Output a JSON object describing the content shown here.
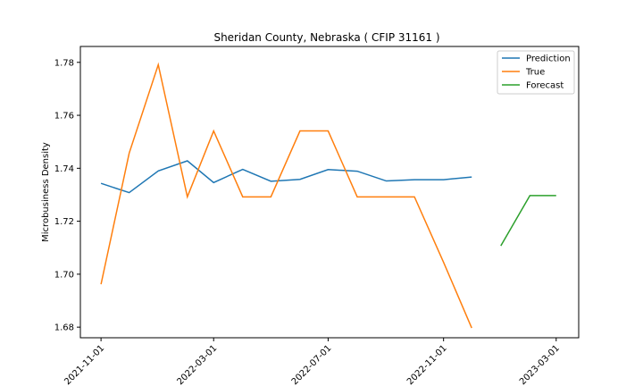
{
  "chart_data": {
    "type": "line",
    "title": "Sheridan County, Nebraska ( CFIP 31161 )",
    "xlabel": "",
    "ylabel": "Microbusiness Density",
    "ylim": [
      1.676,
      1.786
    ],
    "xlim": [
      "2021-10-10",
      "2023-03-25"
    ],
    "x_ticks": [
      "2021-11-01",
      "2022-03-01",
      "2022-07-01",
      "2022-11-01",
      "2023-03-01"
    ],
    "y_ticks": [
      1.68,
      1.7,
      1.72,
      1.74,
      1.76,
      1.78
    ],
    "y_tick_labels": [
      "1.68",
      "1.70",
      "1.72",
      "1.74",
      "1.76",
      "1.78"
    ],
    "grid": false,
    "legend_position": "top-right",
    "series": [
      {
        "name": "Prediction",
        "color": "#1f77b4",
        "x": [
          "2021-11-01",
          "2021-12-01",
          "2022-01-01",
          "2022-02-01",
          "2022-03-01",
          "2022-04-01",
          "2022-05-01",
          "2022-06-01",
          "2022-07-01",
          "2022-08-01",
          "2022-09-01",
          "2022-10-01",
          "2022-11-01",
          "2022-12-01"
        ],
        "y": [
          1.7343,
          1.7308,
          1.739,
          1.7428,
          1.7346,
          1.7396,
          1.7351,
          1.7358,
          1.7395,
          1.7389,
          1.7352,
          1.7357,
          1.7357,
          1.7367
        ]
      },
      {
        "name": "True",
        "color": "#ff7f0e",
        "x": [
          "2021-11-01",
          "2021-12-01",
          "2022-01-01",
          "2022-02-01",
          "2022-03-01",
          "2022-04-01",
          "2022-05-01",
          "2022-06-01",
          "2022-07-01",
          "2022-08-01",
          "2022-09-01",
          "2022-10-01",
          "2022-11-01",
          "2022-12-01"
        ],
        "y": [
          1.6962,
          1.7457,
          1.7791,
          1.7292,
          1.7541,
          1.7292,
          1.7292,
          1.7541,
          1.7541,
          1.7292,
          1.7292,
          1.7292,
          1.7045,
          1.6797
        ]
      },
      {
        "name": "Forecast",
        "color": "#2ca02c",
        "x": [
          "2023-01-01",
          "2023-02-01",
          "2023-03-01"
        ],
        "y": [
          1.7107,
          1.7297,
          1.7297
        ]
      }
    ]
  }
}
